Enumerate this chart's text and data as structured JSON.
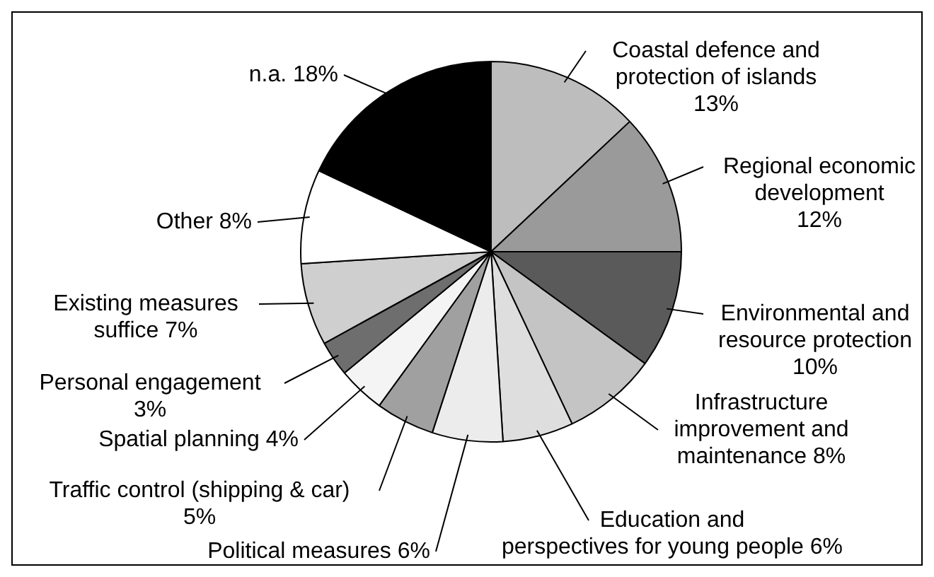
{
  "chart_data": {
    "type": "pie",
    "categories": [
      "Coastal defence and protection of islands",
      "Regional economic development",
      "Environmental and resource protection",
      "Infrastructure improvement and maintenance",
      "Education and perspectives for young people",
      "Political measures",
      "Traffic control (shipping & car)",
      "Spatial planning",
      "Personal engagement",
      "Existing measures suffice",
      "Other",
      "n.a."
    ],
    "values": [
      13,
      12,
      10,
      8,
      6,
      6,
      5,
      4,
      3,
      7,
      8,
      18
    ],
    "value_labels": [
      "13%",
      "12%",
      "10%",
      "8%",
      "6%",
      "6%",
      "5%",
      "4%",
      "3%",
      "7%",
      "8%",
      "18%"
    ],
    "colors": [
      "#bdbdbd",
      "#9a9a9a",
      "#5a5a5a",
      "#c4c4c4",
      "#dedede",
      "#ececec",
      "#a0a0a0",
      "#f4f4f4",
      "#6e6e6e",
      "#cfcfcf",
      "#ffffff",
      "#000000"
    ]
  }
}
